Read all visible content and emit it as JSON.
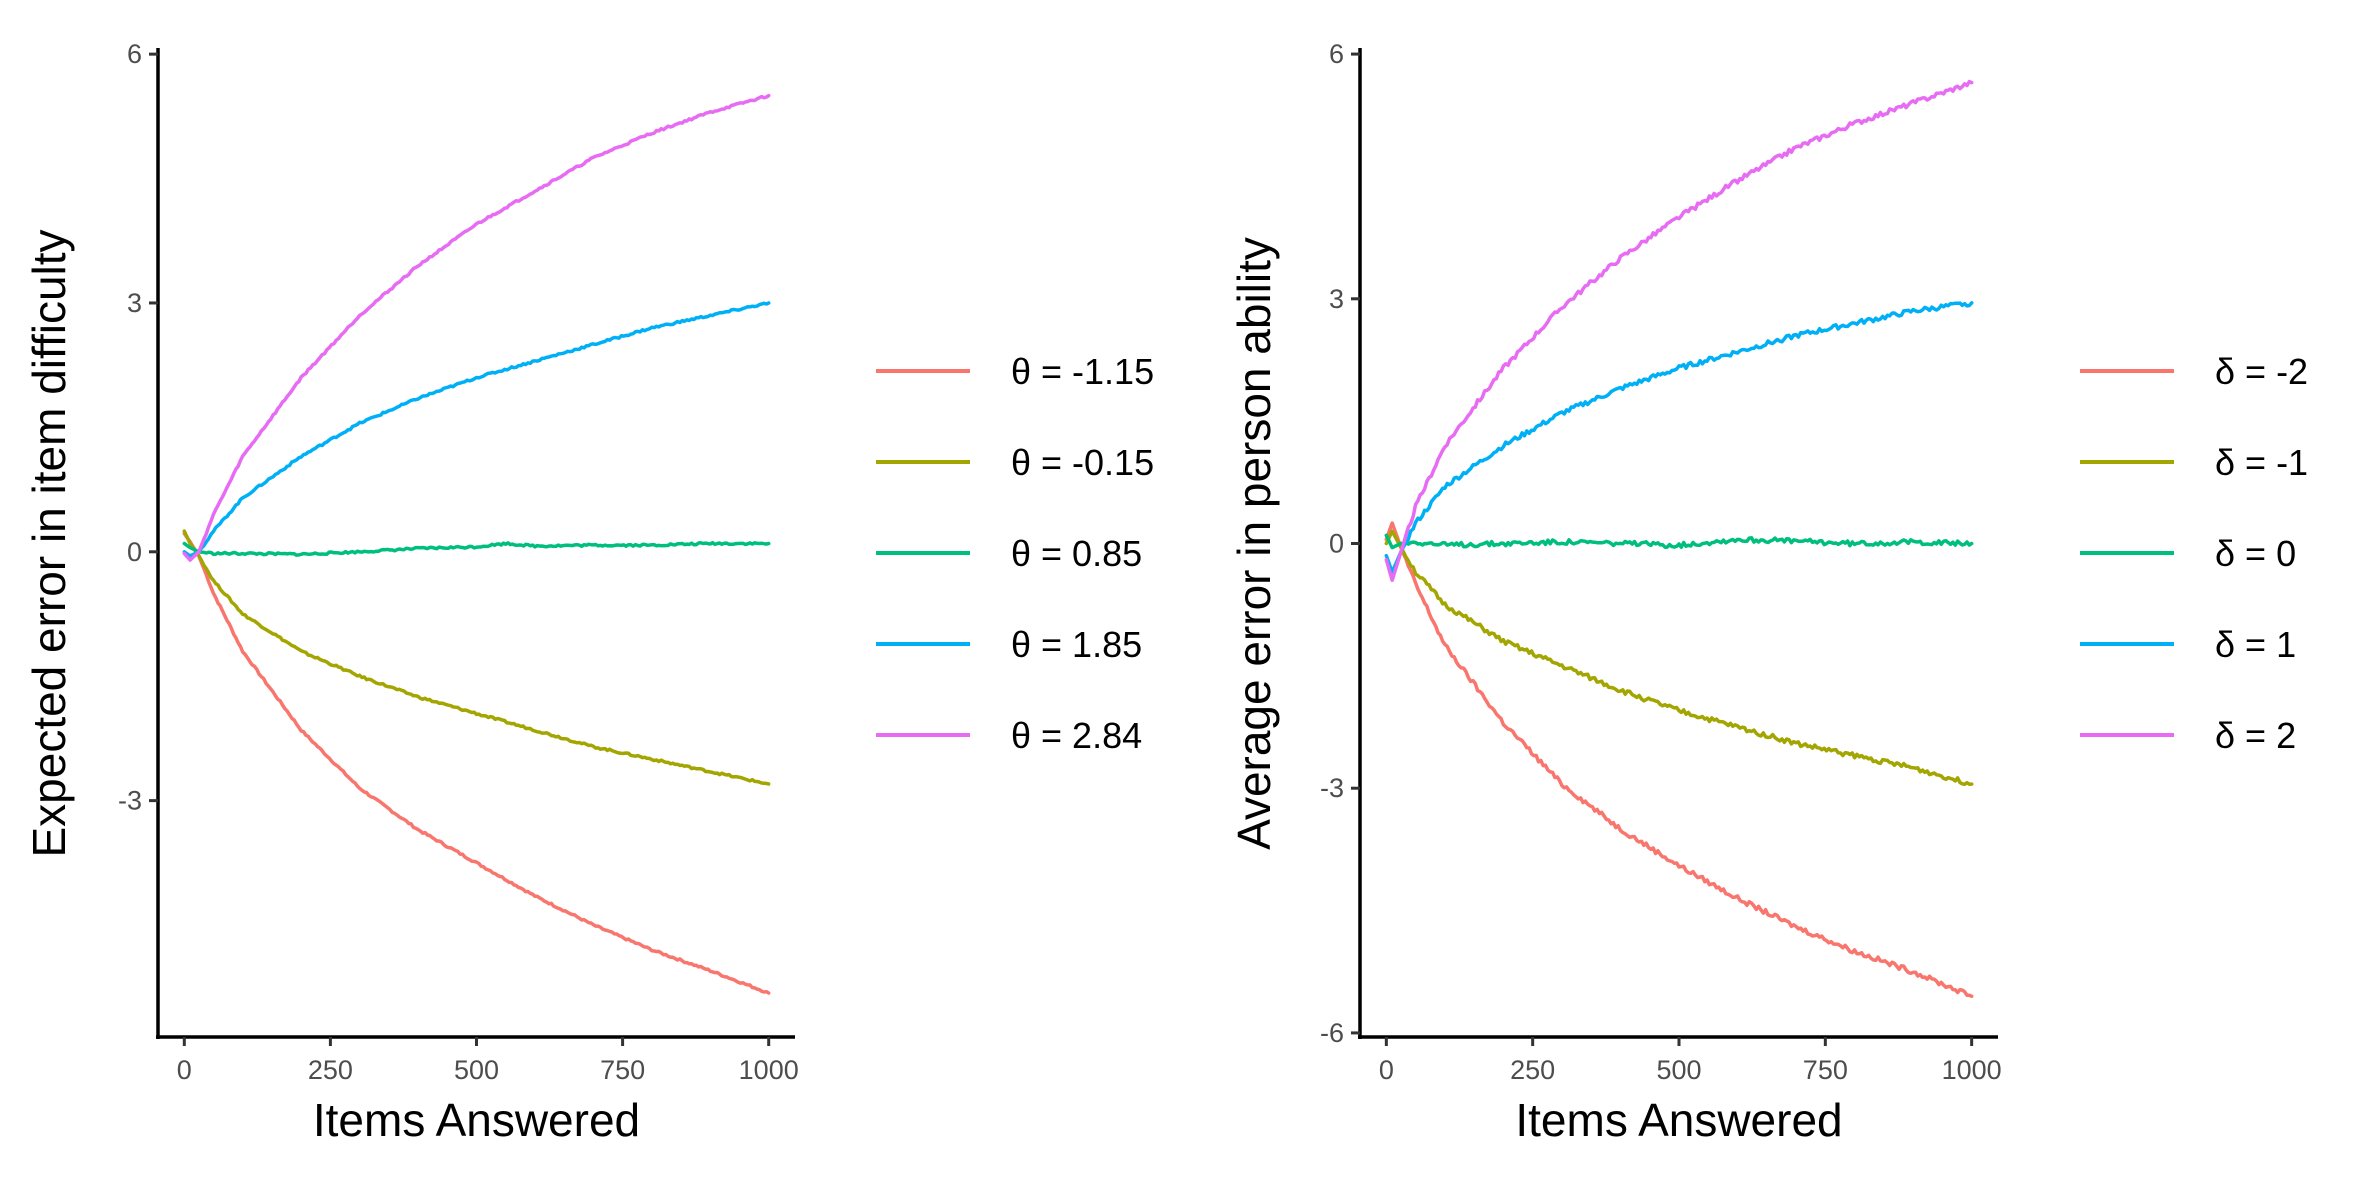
{
  "chart_data": [
    {
      "type": "line",
      "xlabel": "Items Answered",
      "ylabel": "Expected error in item difficulty",
      "xlim": [
        -45,
        1045
      ],
      "ylim": [
        -5.85,
        6.05
      ],
      "xticks": [
        0,
        250,
        500,
        750,
        1000
      ],
      "yticks": [
        -3,
        0,
        3,
        6
      ],
      "grid": false,
      "legend_position": "right",
      "series": [
        {
          "name": "θ = -1.15",
          "color": "#F8766D",
          "values": [
            [
              0,
              0.22
            ],
            [
              10,
              0.12
            ],
            [
              25,
              -0.05
            ],
            [
              50,
              -0.5
            ],
            [
              100,
              -1.2
            ],
            [
              200,
              -2.15
            ],
            [
              300,
              -2.85
            ],
            [
              400,
              -3.35
            ],
            [
              500,
              -3.75
            ],
            [
              600,
              -4.15
            ],
            [
              700,
              -4.5
            ],
            [
              800,
              -4.8
            ],
            [
              900,
              -5.05
            ],
            [
              1000,
              -5.32
            ]
          ]
        },
        {
          "name": "θ = -0.15",
          "color": "#A3A500",
          "values": [
            [
              0,
              0.25
            ],
            [
              10,
              0.1
            ],
            [
              25,
              -0.05
            ],
            [
              50,
              -0.35
            ],
            [
              100,
              -0.75
            ],
            [
              200,
              -1.2
            ],
            [
              300,
              -1.5
            ],
            [
              400,
              -1.75
            ],
            [
              500,
              -1.95
            ],
            [
              600,
              -2.15
            ],
            [
              700,
              -2.35
            ],
            [
              800,
              -2.5
            ],
            [
              900,
              -2.65
            ],
            [
              1000,
              -2.8
            ]
          ]
        },
        {
          "name": "θ = 0.85",
          "color": "#00BF7D",
          "values": [
            [
              0,
              0.1
            ],
            [
              10,
              0.05
            ],
            [
              25,
              0.0
            ],
            [
              50,
              -0.02
            ],
            [
              100,
              -0.02
            ],
            [
              200,
              -0.03
            ],
            [
              300,
              0.0
            ],
            [
              400,
              0.04
            ],
            [
              500,
              0.06
            ],
            [
              550,
              0.1
            ],
            [
              600,
              0.07
            ],
            [
              700,
              0.08
            ],
            [
              800,
              0.08
            ],
            [
              900,
              0.1
            ],
            [
              1000,
              0.1
            ]
          ]
        },
        {
          "name": "θ = 1.85",
          "color": "#00B0F6",
          "values": [
            [
              0,
              0.0
            ],
            [
              10,
              -0.05
            ],
            [
              25,
              0.0
            ],
            [
              50,
              0.25
            ],
            [
              100,
              0.65
            ],
            [
              200,
              1.15
            ],
            [
              300,
              1.55
            ],
            [
              400,
              1.85
            ],
            [
              500,
              2.1
            ],
            [
              600,
              2.3
            ],
            [
              700,
              2.5
            ],
            [
              800,
              2.7
            ],
            [
              900,
              2.85
            ],
            [
              1000,
              3.0
            ]
          ]
        },
        {
          "name": "θ = 2.84",
          "color": "#E76BF3",
          "values": [
            [
              0,
              -0.02
            ],
            [
              10,
              -0.1
            ],
            [
              25,
              0.0
            ],
            [
              50,
              0.45
            ],
            [
              100,
              1.15
            ],
            [
              200,
              2.1
            ],
            [
              300,
              2.85
            ],
            [
              400,
              3.45
            ],
            [
              500,
              3.95
            ],
            [
              600,
              4.35
            ],
            [
              700,
              4.75
            ],
            [
              800,
              5.05
            ],
            [
              900,
              5.3
            ],
            [
              1000,
              5.5
            ]
          ]
        }
      ]
    },
    {
      "type": "line",
      "xlabel": "Items Answered",
      "ylabel": "Average error in person ability",
      "xlim": [
        -45,
        1045
      ],
      "ylim": [
        -6.05,
        6.05
      ],
      "xticks": [
        0,
        250,
        500,
        750,
        1000
      ],
      "yticks": [
        -6,
        -3,
        0,
        3,
        6
      ],
      "grid": false,
      "legend_position": "right",
      "series": [
        {
          "name": "δ = -2",
          "color": "#F8766D",
          "values": [
            [
              0,
              0.05
            ],
            [
              10,
              0.25
            ],
            [
              25,
              -0.05
            ],
            [
              50,
              -0.5
            ],
            [
              100,
              -1.25
            ],
            [
              200,
              -2.2
            ],
            [
              300,
              -2.95
            ],
            [
              400,
              -3.5
            ],
            [
              500,
              -3.95
            ],
            [
              600,
              -4.35
            ],
            [
              700,
              -4.7
            ],
            [
              800,
              -5.0
            ],
            [
              900,
              -5.25
            ],
            [
              1000,
              -5.55
            ]
          ]
        },
        {
          "name": "δ = -1",
          "color": "#A3A500",
          "values": [
            [
              0,
              0.0
            ],
            [
              10,
              0.15
            ],
            [
              25,
              -0.05
            ],
            [
              50,
              -0.35
            ],
            [
              100,
              -0.75
            ],
            [
              200,
              -1.2
            ],
            [
              300,
              -1.5
            ],
            [
              400,
              -1.8
            ],
            [
              500,
              -2.05
            ],
            [
              600,
              -2.25
            ],
            [
              700,
              -2.45
            ],
            [
              800,
              -2.6
            ],
            [
              900,
              -2.75
            ],
            [
              1000,
              -2.95
            ]
          ]
        },
        {
          "name": "δ = 0",
          "color": "#00BF7D",
          "values": [
            [
              0,
              0.1
            ],
            [
              10,
              -0.05
            ],
            [
              25,
              0.0
            ],
            [
              50,
              0.02
            ],
            [
              100,
              -0.02
            ],
            [
              200,
              0.0
            ],
            [
              300,
              0.02
            ],
            [
              400,
              0.0
            ],
            [
              500,
              -0.02
            ],
            [
              600,
              0.05
            ],
            [
              700,
              0.03
            ],
            [
              800,
              0.0
            ],
            [
              900,
              0.02
            ],
            [
              1000,
              0.0
            ]
          ]
        },
        {
          "name": "δ = 1",
          "color": "#00B0F6",
          "values": [
            [
              0,
              -0.15
            ],
            [
              10,
              -0.35
            ],
            [
              25,
              -0.1
            ],
            [
              50,
              0.25
            ],
            [
              100,
              0.7
            ],
            [
              200,
              1.2
            ],
            [
              300,
              1.6
            ],
            [
              400,
              1.9
            ],
            [
              500,
              2.15
            ],
            [
              600,
              2.35
            ],
            [
              700,
              2.55
            ],
            [
              800,
              2.7
            ],
            [
              900,
              2.85
            ],
            [
              1000,
              2.95
            ]
          ]
        },
        {
          "name": "δ = 2",
          "color": "#E76BF3",
          "values": [
            [
              0,
              -0.2
            ],
            [
              10,
              -0.45
            ],
            [
              25,
              -0.1
            ],
            [
              50,
              0.45
            ],
            [
              100,
              1.2
            ],
            [
              200,
              2.15
            ],
            [
              300,
              2.9
            ],
            [
              400,
              3.5
            ],
            [
              500,
              4.0
            ],
            [
              600,
              4.45
            ],
            [
              700,
              4.85
            ],
            [
              800,
              5.15
            ],
            [
              900,
              5.4
            ],
            [
              1000,
              5.65
            ]
          ]
        }
      ]
    }
  ]
}
